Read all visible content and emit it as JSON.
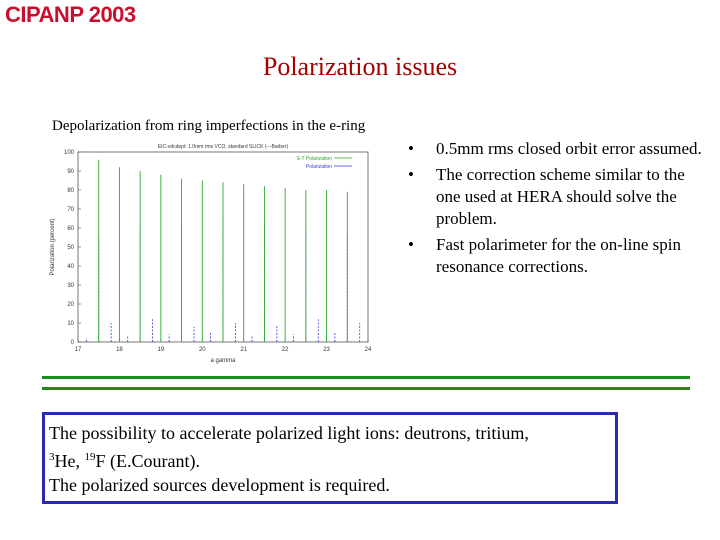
{
  "header": {
    "logo_text": "CIPANP 2003"
  },
  "slide": {
    "title": "Polarization issues",
    "caption": "Depolarization from ring imperfections in the e-ring"
  },
  "bullets": {
    "items": [
      "0.5mm rms closed orbit error assumed.",
      "The correction scheme similar to the one used at HERA should solve the problem.",
      "Fast polarimeter for the on-line spin resonance corrections."
    ],
    "marker": "•"
  },
  "note": {
    "line1": "The possibility to accelerate polarized light ions: deutrons, tritium,",
    "sup1": "3",
    "he": "He,",
    "sup2": "19",
    "f": "F  (E.Courant).",
    "line3": "The polarized sources development is required."
  },
  "chart_data": {
    "type": "line",
    "title": "EIC-vdcdept: 1.0mm rms VCO, standard SLICK (---Barber)",
    "xlabel": "a gamma",
    "ylabel": "Polarization (percent)",
    "xlim": [
      17,
      24
    ],
    "ylim": [
      0,
      100
    ],
    "x_ticks": [
      "17",
      "18",
      "19",
      "20",
      "21",
      "22",
      "23",
      "24"
    ],
    "y_ticks": [
      "0",
      "10",
      "20",
      "30",
      "40",
      "50",
      "60",
      "70",
      "80",
      "90",
      "100"
    ],
    "legend": [
      "S-T Polarization",
      "Polarization"
    ],
    "legend_position": "top-right",
    "series": [
      {
        "name": "S-T Polarization",
        "color": "#2aa82a",
        "x": [
          17.5,
          18.0,
          18.5,
          19.0,
          19.5,
          20.0,
          20.5,
          21.0,
          21.5,
          22.0,
          22.5,
          23.0,
          23.5
        ],
        "values": [
          96,
          92,
          90,
          88,
          86,
          85,
          84,
          83,
          82,
          81,
          80,
          80,
          79
        ]
      },
      {
        "name": "Polarization",
        "color": "#3a3ad0",
        "x": [
          17.2,
          17.5,
          17.8,
          18.2,
          18.5,
          18.8,
          19.2,
          19.5,
          19.8,
          20.2,
          20.5,
          20.8,
          21.2,
          21.5,
          21.8,
          22.2,
          22.5,
          22.8,
          23.2,
          23.5,
          23.8
        ],
        "values": [
          2,
          55,
          10,
          3,
          60,
          12,
          4,
          62,
          8,
          5,
          65,
          10,
          3,
          63,
          9,
          4,
          60,
          12,
          5,
          55,
          10
        ]
      }
    ]
  }
}
